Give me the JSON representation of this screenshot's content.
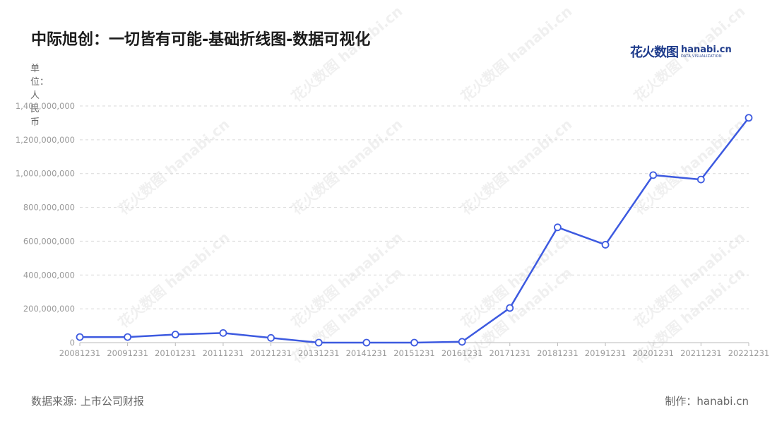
{
  "title": "中际旭创：一切皆有可能-基础折线图-数据可视化",
  "logo": {
    "cn": "花火数图",
    "en": "hanabi.cn",
    "en_sub": "DATA VISUALIZATION"
  },
  "unit_label": "单位：人民币",
  "source": "数据来源: 上市公司财报",
  "credit": "制作：hanabi.cn",
  "colors": {
    "line": "#3d5ae0",
    "grid": "#d9d9d9",
    "axis_text": "#999999"
  },
  "chart_data": {
    "type": "line",
    "title": "中际旭创：一切皆有可能-基础折线图-数据可视化",
    "xlabel": "",
    "ylabel": "单位：人民币",
    "categories": [
      "20081231",
      "20091231",
      "20101231",
      "20111231",
      "20121231",
      "20131231",
      "20141231",
      "20151231",
      "20161231",
      "20171231",
      "20181231",
      "20191231",
      "20201231",
      "20211231",
      "20221231"
    ],
    "yticks": [
      "0",
      "200,000,000",
      "400,000,000",
      "600,000,000",
      "800,000,000",
      "1,000,000,000",
      "1,200,000,000",
      "1,400,000,000"
    ],
    "ylim": [
      0,
      1400000000
    ],
    "grid": true,
    "series": [
      {
        "values": [
          33000000,
          33000000,
          48000000,
          57000000,
          28000000,
          0,
          0,
          0,
          5000000,
          205000000,
          682000000,
          579000000,
          991000000,
          965000000,
          1330000000
        ]
      }
    ]
  }
}
